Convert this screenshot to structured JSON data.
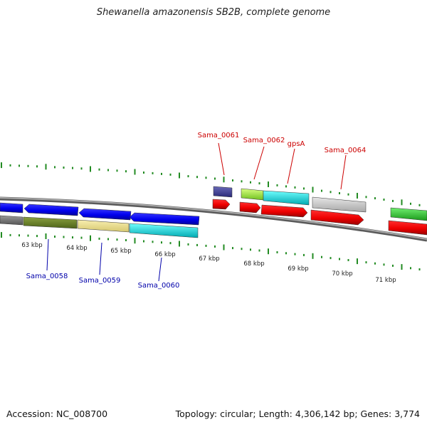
{
  "title": "Shewanella amazonensis SB2B, complete genome",
  "footer": {
    "accession": "Accession: NC_008700",
    "stats": "Topology: circular; Length: 4,306,142 bp; Genes: 3,774"
  },
  "colors": {
    "forward_label": "#cc0000",
    "reverse_label": "#0000aa",
    "tick": "#228b22",
    "backbone": "#808080"
  },
  "scale": {
    "unit": "kbp",
    "ticks": [
      {
        "value": 63,
        "label": "63 kbp"
      },
      {
        "value": 64,
        "label": "64 kbp"
      },
      {
        "value": 65,
        "label": "65 kbp"
      },
      {
        "value": 66,
        "label": "66 kbp"
      },
      {
        "value": 67,
        "label": "67 kbp"
      },
      {
        "value": 68,
        "label": "68 kbp"
      },
      {
        "value": 69,
        "label": "69 kbp"
      },
      {
        "value": 70,
        "label": "70 kbp"
      },
      {
        "value": 71,
        "label": "71 kbp"
      }
    ]
  },
  "gene_labels": {
    "forward": [
      "Sama_0061",
      "Sama_0062",
      "gpsA",
      "Sama_0064"
    ],
    "reverse": [
      "Sama_0058",
      "Sama_0059",
      "Sama_0060"
    ]
  }
}
